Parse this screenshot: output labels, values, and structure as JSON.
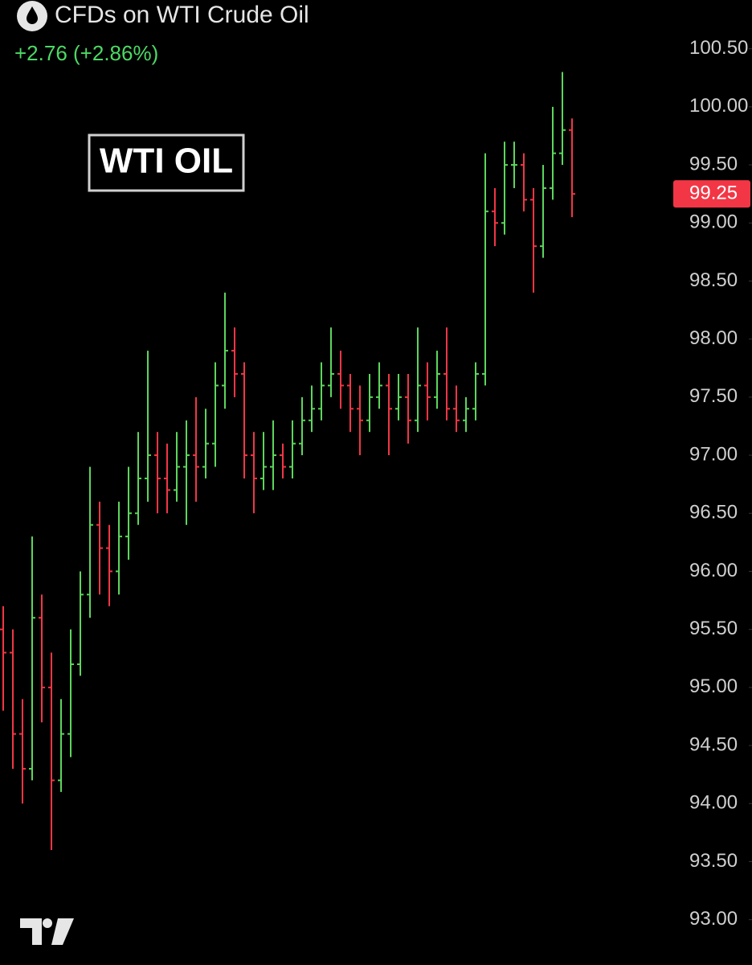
{
  "chart_data": {
    "type": "ohlc",
    "title": "CFDs on WTI Crude Oil",
    "subtitle": "+2.76 (+2.86%)",
    "annotation": "WTI OIL",
    "up_color": "#5cd65c",
    "down_color": "#f23645",
    "ylim": [
      92.61,
      100.92
    ],
    "yticks": [
      {
        "value": 93,
        "label": "93.00"
      },
      {
        "value": 93.5,
        "label": "93.50"
      },
      {
        "value": 94,
        "label": "94.00"
      },
      {
        "value": 94.5,
        "label": "94.50"
      },
      {
        "value": 95,
        "label": "95.00"
      },
      {
        "value": 95.5,
        "label": "95.50"
      },
      {
        "value": 96,
        "label": "96.00"
      },
      {
        "value": 96.5,
        "label": "96.50"
      },
      {
        "value": 97,
        "label": "97.00"
      },
      {
        "value": 97.5,
        "label": "97.50"
      },
      {
        "value": 98,
        "label": "98.00"
      },
      {
        "value": 98.5,
        "label": "98.50"
      },
      {
        "value": 99,
        "label": "99.00"
      },
      {
        "value": 99.5,
        "label": "99.50"
      },
      {
        "value": 100,
        "label": "100.00"
      },
      {
        "value": 100.5,
        "label": "100.50"
      }
    ],
    "last_price": {
      "value": 99.25,
      "label": "99.25"
    },
    "open": [
      95.5,
      95.3,
      94.6,
      94.3,
      95.6,
      95.0,
      94.2,
      94.6,
      95.2,
      95.8,
      96.4,
      96.2,
      96.0,
      96.3,
      96.5,
      96.8,
      97.0,
      96.8,
      96.7,
      96.9,
      97.0,
      96.9,
      97.1,
      97.6,
      97.9,
      97.7,
      97.0,
      96.8,
      96.9,
      97.0,
      96.9,
      97.1,
      97.3,
      97.4,
      97.6,
      97.7,
      97.6,
      97.4,
      97.3,
      97.5,
      97.6,
      97.4,
      97.5,
      97.3,
      97.6,
      97.5,
      97.7,
      97.4,
      97.3,
      97.4,
      97.7,
      99.1,
      99.0,
      99.5,
      99.5,
      99.2,
      98.8,
      99.3,
      99.6,
      99.8
    ],
    "high": [
      95.7,
      95.5,
      94.9,
      96.3,
      95.8,
      95.3,
      94.9,
      95.5,
      96.0,
      96.9,
      96.6,
      96.4,
      96.6,
      96.9,
      97.2,
      97.9,
      97.2,
      97.1,
      97.2,
      97.3,
      97.5,
      97.4,
      97.8,
      98.4,
      98.1,
      97.8,
      97.2,
      97.2,
      97.3,
      97.1,
      97.3,
      97.5,
      97.6,
      97.8,
      98.1,
      97.9,
      97.7,
      97.6,
      97.7,
      97.8,
      97.7,
      97.7,
      97.7,
      98.1,
      97.8,
      97.9,
      98.1,
      97.6,
      97.5,
      97.8,
      99.6,
      99.3,
      99.7,
      99.7,
      99.6,
      99.3,
      99.5,
      100.0,
      100.3,
      99.9
    ],
    "low": [
      94.8,
      94.3,
      94.0,
      94.2,
      94.7,
      93.6,
      94.1,
      94.4,
      95.1,
      95.6,
      95.8,
      95.7,
      95.8,
      96.1,
      96.4,
      96.6,
      96.5,
      96.5,
      96.6,
      96.4,
      96.6,
      96.8,
      96.9,
      97.4,
      97.5,
      96.8,
      96.5,
      96.7,
      96.7,
      96.8,
      96.8,
      97.0,
      97.2,
      97.3,
      97.5,
      97.4,
      97.2,
      97.0,
      97.2,
      97.4,
      97.0,
      97.3,
      97.1,
      97.2,
      97.3,
      97.4,
      97.3,
      97.2,
      97.2,
      97.3,
      97.6,
      98.8,
      98.9,
      99.3,
      99.1,
      98.4,
      98.7,
      99.2,
      99.5,
      99.05
    ],
    "close": [
      95.3,
      94.6,
      94.3,
      95.6,
      95.0,
      94.2,
      94.6,
      95.2,
      95.8,
      96.4,
      96.2,
      96.0,
      96.3,
      96.5,
      96.8,
      97.0,
      96.8,
      96.7,
      96.9,
      97.0,
      96.9,
      97.1,
      97.6,
      97.9,
      97.7,
      97.0,
      96.8,
      96.9,
      97.0,
      96.9,
      97.1,
      97.3,
      97.4,
      97.6,
      97.7,
      97.6,
      97.4,
      97.3,
      97.5,
      97.6,
      97.4,
      97.5,
      97.3,
      97.6,
      97.5,
      97.7,
      97.4,
      97.3,
      97.4,
      97.7,
      99.1,
      99.0,
      99.5,
      99.5,
      99.2,
      98.8,
      99.3,
      99.6,
      99.8,
      99.25
    ]
  }
}
